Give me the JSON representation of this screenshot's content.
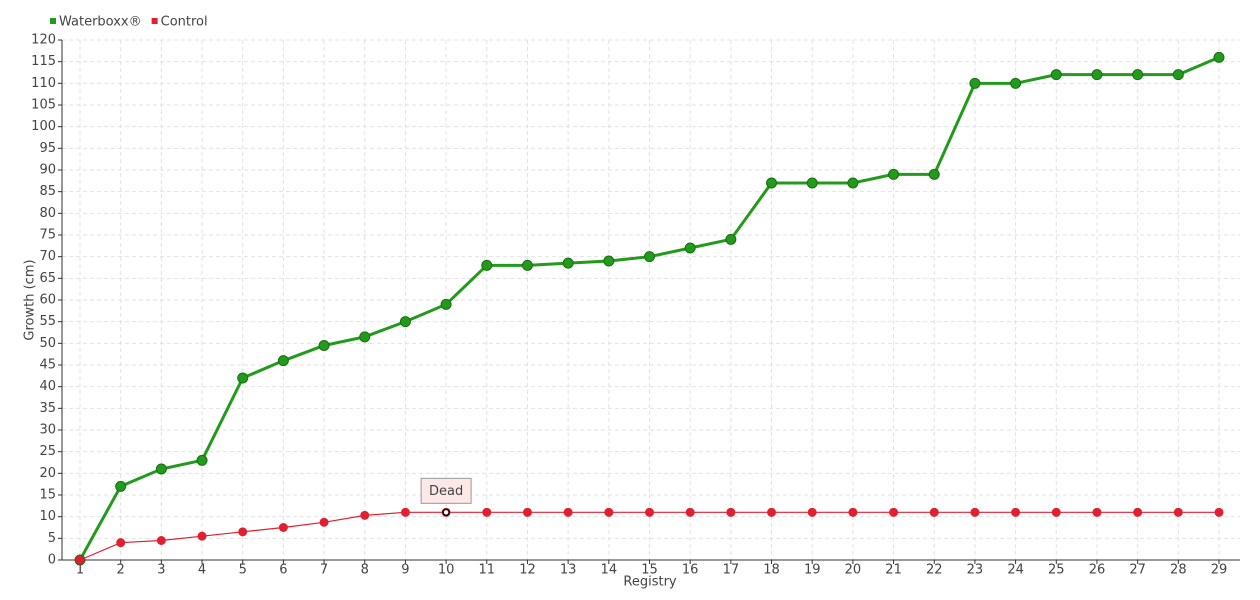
{
  "chart_data": {
    "type": "line",
    "x_label": "Registry",
    "y_label": "Growth (cm)",
    "categories": [
      "1",
      "2",
      "3",
      "4",
      "5",
      "6",
      "7",
      "8",
      "9",
      "10",
      "11",
      "12",
      "13",
      "14",
      "15",
      "16",
      "17",
      "18",
      "19",
      "20",
      "21",
      "22",
      "23",
      "24",
      "25",
      "26",
      "27",
      "28",
      "29"
    ],
    "series": [
      {
        "name": "Waterboxx®",
        "color": "#229a1c",
        "values": [
          0,
          17,
          21,
          23,
          42,
          46,
          49.5,
          51.5,
          55,
          59,
          68,
          68,
          68.5,
          69,
          70,
          72,
          74,
          87,
          87,
          87,
          89,
          89,
          110,
          110,
          112,
          112,
          112,
          112,
          116
        ]
      },
      {
        "name": "Control",
        "color": "#e02030",
        "values": [
          0,
          4,
          4.5,
          5.5,
          6.5,
          7.5,
          8.7,
          10.3,
          11,
          11,
          11,
          11,
          11,
          11,
          11,
          11,
          11,
          11,
          11,
          11,
          11,
          11,
          11,
          11,
          11,
          11,
          11,
          11,
          11
        ]
      }
    ],
    "annotations": [
      {
        "text": "Dead",
        "category": "10",
        "series": "Control"
      }
    ],
    "ylim": [
      0,
      120
    ],
    "yticks": [
      0,
      5,
      10,
      15,
      20,
      25,
      30,
      35,
      40,
      45,
      50,
      55,
      60,
      65,
      70,
      75,
      80,
      85,
      90,
      95,
      100,
      105,
      110,
      115,
      120
    ],
    "grid": true,
    "legend": "top-left"
  }
}
